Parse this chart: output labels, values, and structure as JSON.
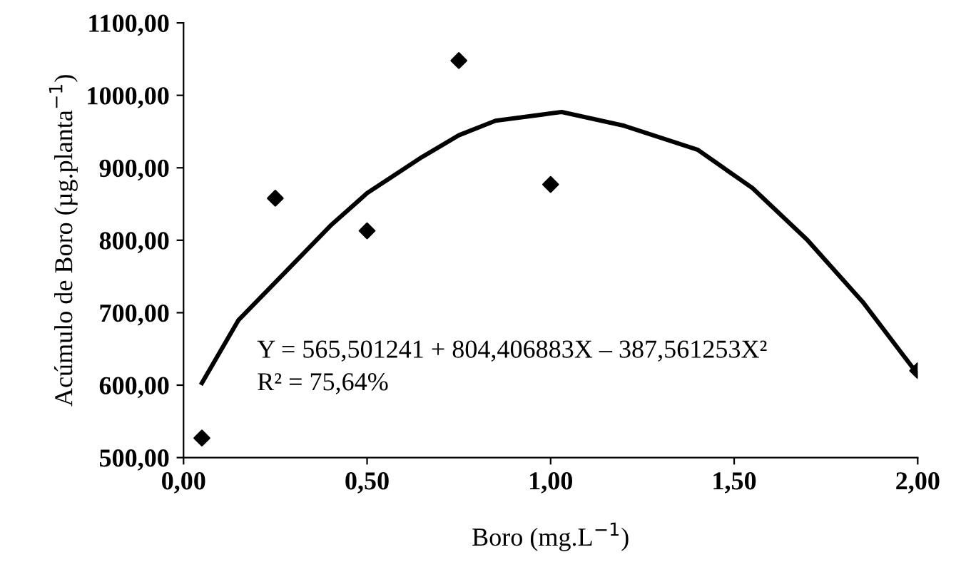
{
  "chart_data": {
    "type": "scatter",
    "xlabel": "Boro (mg.L$^{−1}$)",
    "ylabel": "Acúmulo de Boro (µg.planta$^{−1}$)",
    "series": [
      {
        "color": "#000000",
        "marker": "diamond",
        "x": [
          0.05,
          0.25,
          0.5,
          0.75,
          1.0,
          2.0
        ],
        "values": [
          527,
          858,
          813,
          1048,
          877,
          620
        ]
      },
      {
        "type": "line",
        "color": "#000000",
        "marker": "none",
        "line_style": "solid",
        "x": [
          0.05,
          0.15,
          0.25,
          0.4,
          0.5,
          0.65,
          0.75,
          0.85,
          1.0,
          1.03,
          1.2,
          1.4,
          1.55,
          1.7,
          1.85,
          2.0
        ],
        "values": [
          603,
          690,
          742,
          820,
          865,
          915,
          945,
          965,
          975,
          977,
          958,
          925,
          872,
          800,
          715,
          615
        ]
      }
    ],
    "annotations": [
      "Y = 565,501241 + 804,406883X – 387,561253X²",
      "R² = 75,64%"
    ],
    "xlim": [
      0,
      2.0
    ],
    "ylim": [
      500,
      1100
    ],
    "xticks": [
      {
        "value": 0,
        "label": "0,00"
      },
      {
        "value": 0.5,
        "label": "0,50"
      },
      {
        "value": 1.0,
        "label": "1,00"
      },
      {
        "value": 1.5,
        "label": "1,50"
      },
      {
        "value": 2.0,
        "label": "2,00"
      }
    ],
    "yticks": [
      {
        "value": 500,
        "label": "500,00"
      },
      {
        "value": 600,
        "label": "600,00"
      },
      {
        "value": 700,
        "label": "700,00"
      },
      {
        "value": 800,
        "label": "800,00"
      },
      {
        "value": 900,
        "label": "900,00"
      },
      {
        "value": 1000,
        "label": "1000,00"
      },
      {
        "value": 1100,
        "label": "1100,00"
      }
    ],
    "grid": false,
    "legend": false
  }
}
